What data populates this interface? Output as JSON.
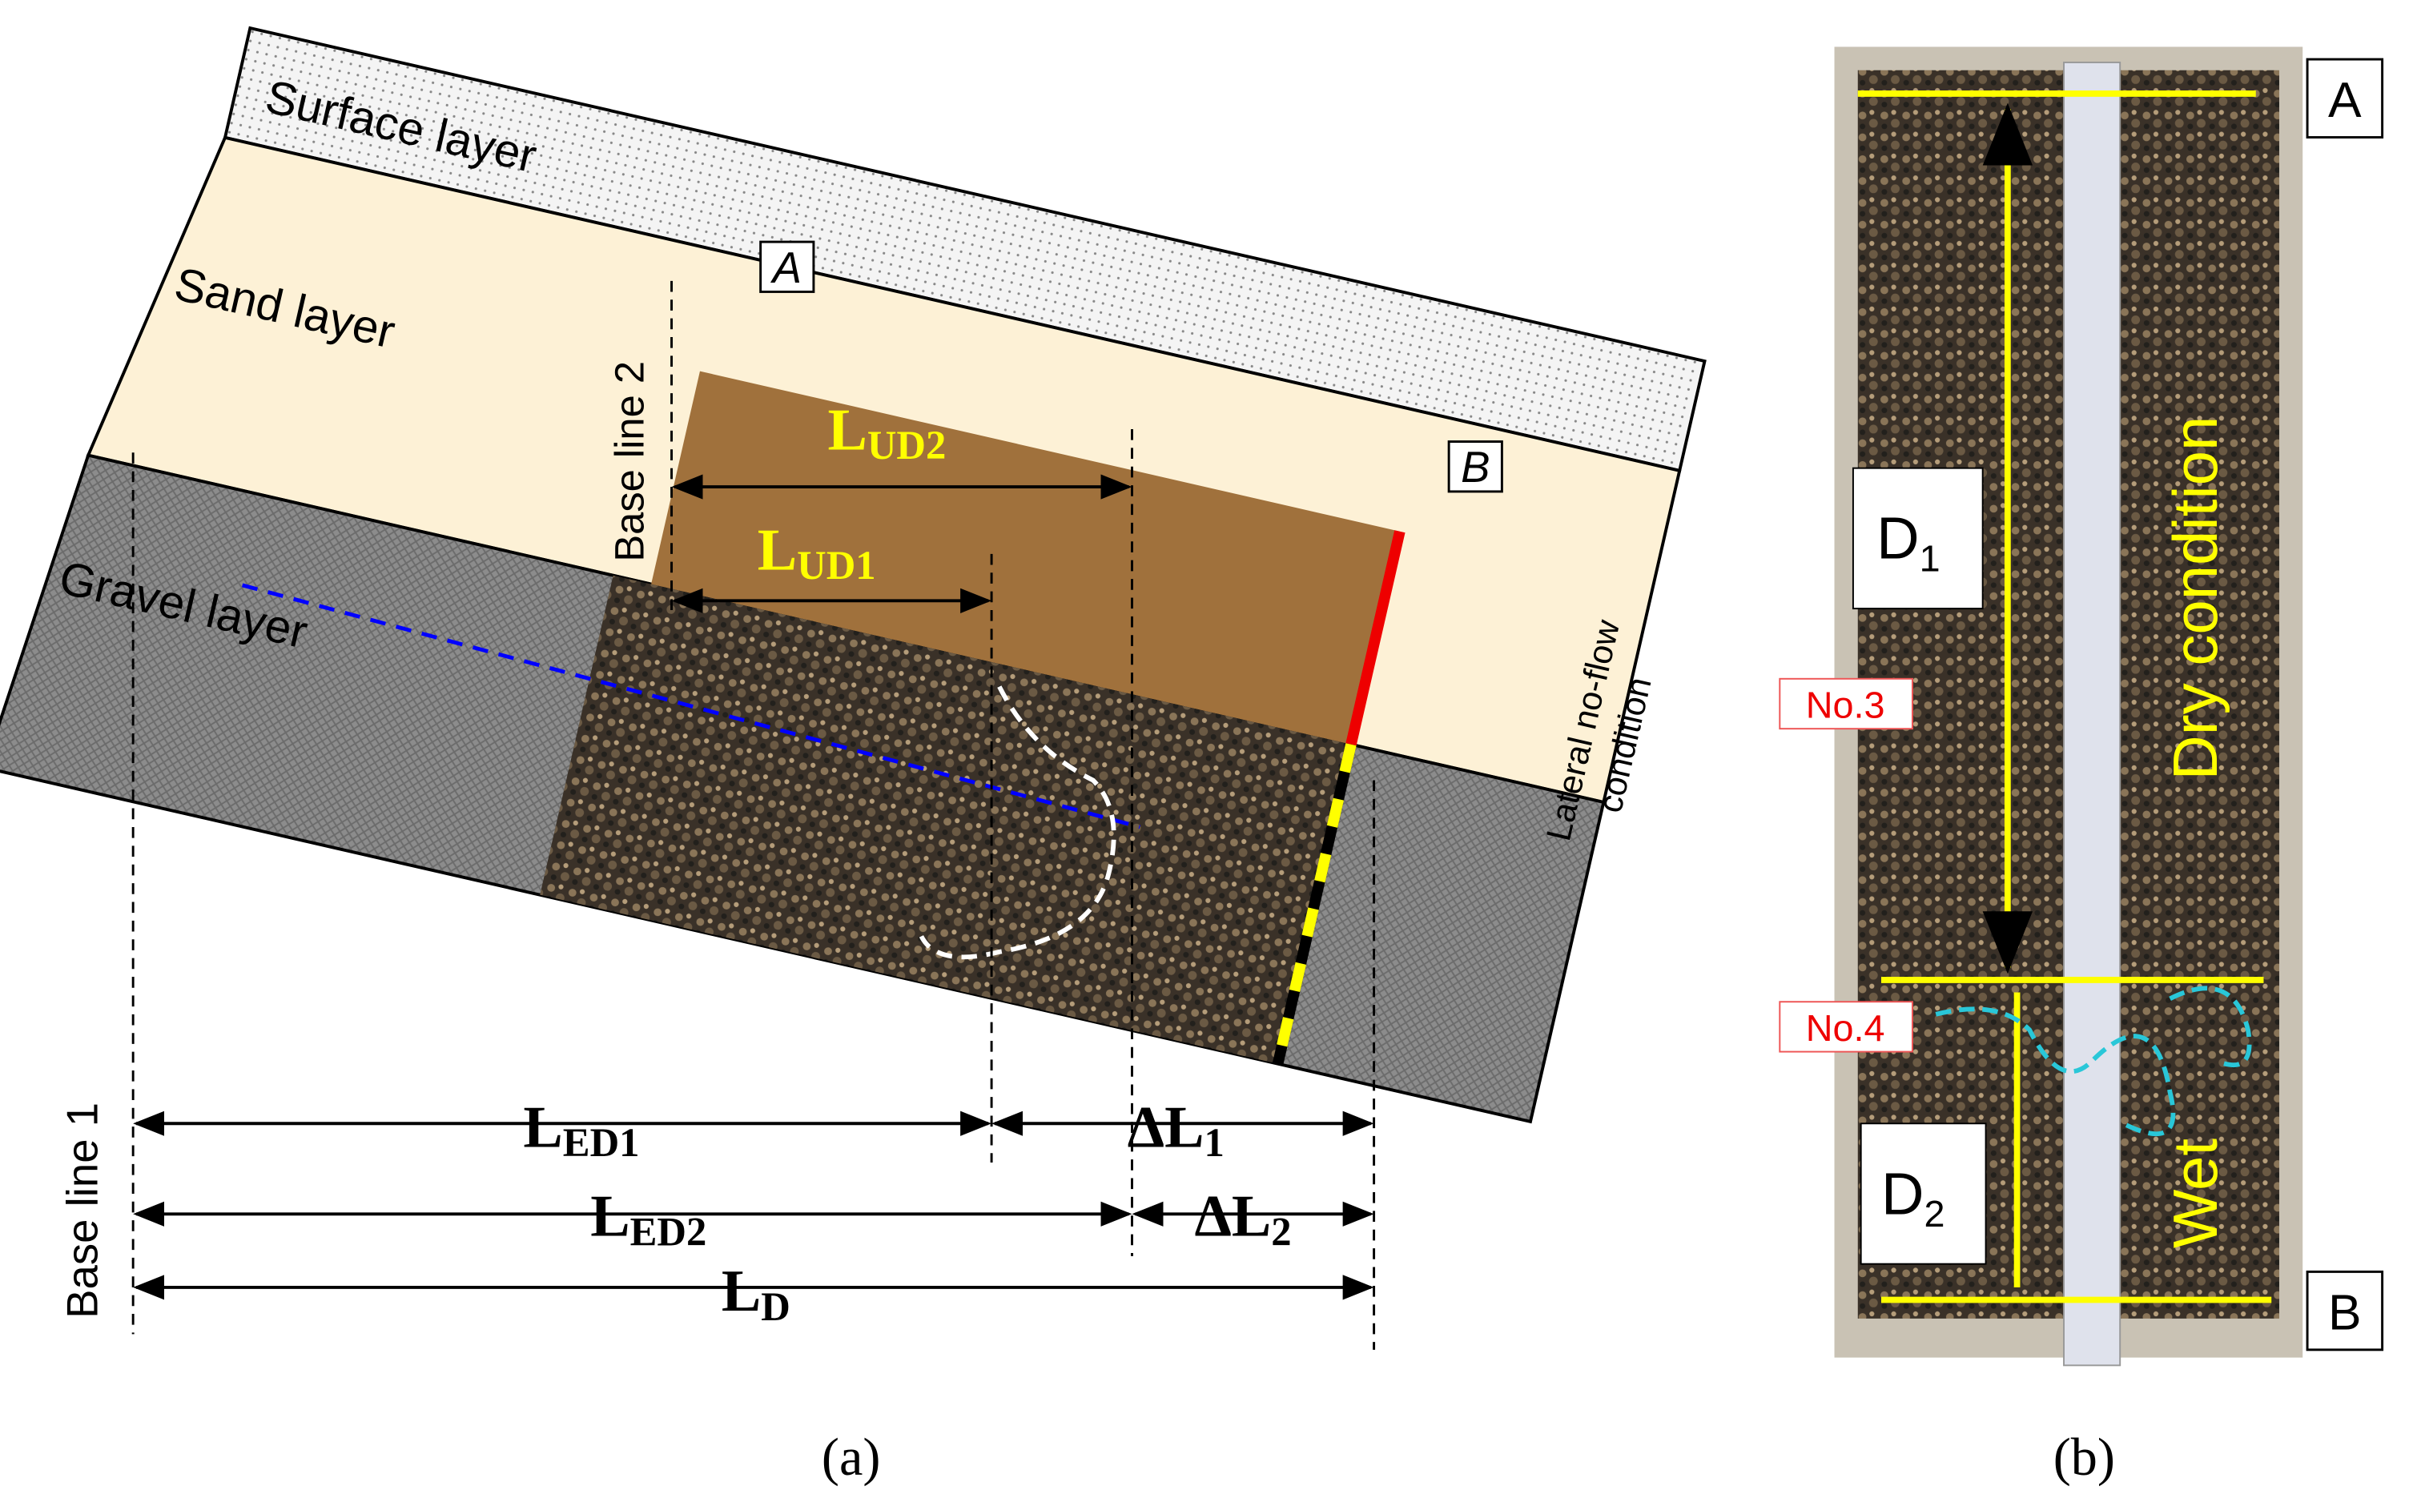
{
  "panel_a": {
    "layers": [
      "Surface layer",
      "Sand layer",
      "Gravel layer"
    ],
    "markers": [
      "A",
      "B"
    ],
    "base_lines": [
      "Base line 1",
      "Base line 2"
    ],
    "dimensions": {
      "LUD2": {
        "main": "L",
        "sub": "UD2"
      },
      "LUD1": {
        "main": "L",
        "sub": "UD1"
      },
      "LED1": {
        "main": "L",
        "sub": "ED1"
      },
      "DL1": {
        "main": "ΔL",
        "sub": "1"
      },
      "LED2": {
        "main": "L",
        "sub": "ED2"
      },
      "DL2": {
        "main": "ΔL",
        "sub": "2"
      },
      "LD": {
        "main": "L",
        "sub": "D"
      }
    },
    "boundary": [
      "Lateral no-flow",
      "condition"
    ],
    "caption": "(a)"
  },
  "panel_b": {
    "markers": [
      "A",
      "B"
    ],
    "D1": {
      "main": "D",
      "sub": "1"
    },
    "D2": {
      "main": "D",
      "sub": "2"
    },
    "sensors": [
      "No.3",
      "No.4"
    ],
    "conditions": [
      "Dry condition",
      "Wet"
    ],
    "caption": "(b)"
  }
}
